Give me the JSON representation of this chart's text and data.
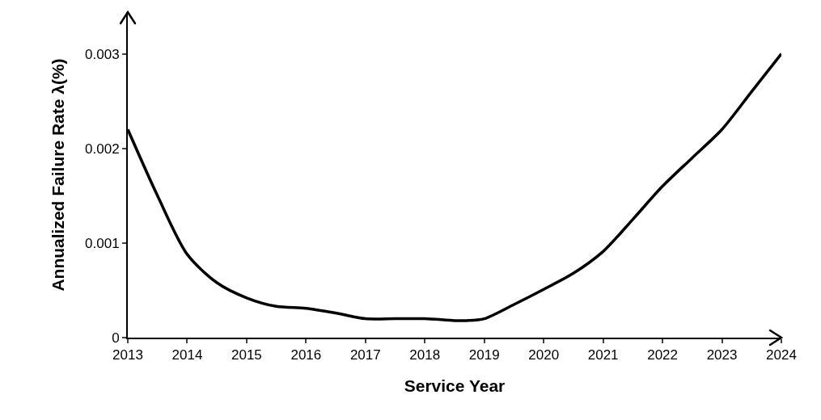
{
  "chart_data": {
    "type": "line",
    "xlabel": "Service Year",
    "ylabel": "Annualized Failure Rate λ(%)",
    "x": [
      2013,
      2013.5,
      2014,
      2014.5,
      2015,
      2015.5,
      2016,
      2016.5,
      2017,
      2017.5,
      2018,
      2018.5,
      2018.7,
      2019,
      2019.5,
      2020,
      2020.5,
      2021,
      2021.5,
      2022,
      2022.5,
      2023,
      2023.5,
      2024
    ],
    "values": [
      0.0022,
      0.0015,
      0.00088,
      0.00058,
      0.00042,
      0.00033,
      0.00031,
      0.00026,
      0.0002,
      0.0002,
      0.0002,
      0.00018,
      0.00018,
      0.0002,
      0.00035,
      0.00051,
      0.00068,
      0.00091,
      0.00125,
      0.0016,
      0.0019,
      0.0022,
      0.0026,
      0.003
    ],
    "color": "#000000",
    "xlim": [
      2013,
      2024
    ],
    "ylim": [
      0,
      0.00344
    ],
    "xticks": [
      2013,
      2014,
      2015,
      2016,
      2017,
      2018,
      2019,
      2020,
      2021,
      2022,
      2023,
      2024
    ],
    "yticks": [
      0,
      0.001,
      0.002,
      0.003
    ],
    "grid": false,
    "marker": "none",
    "line_style": "solid"
  }
}
